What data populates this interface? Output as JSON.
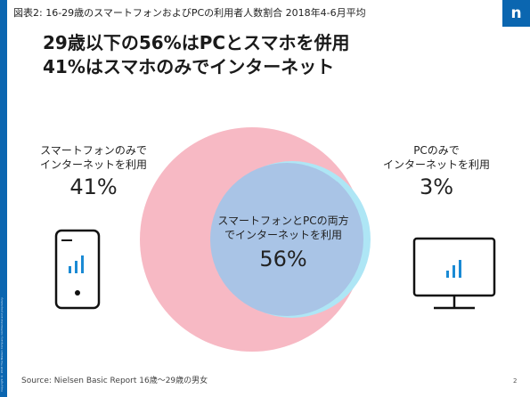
{
  "header": {
    "subtitle": "図表2: 16-29歳のスマートフォンおよびPCの利用者人数割合 2018年4-6月平均",
    "logo_letter": "n"
  },
  "title": {
    "line1": "29歳以下の56%はPCとスマホを併用",
    "line2": "41%はスマホのみでインターネット"
  },
  "segments": {
    "smartphone_only": {
      "line1": "スマートフォンのみで",
      "line2": "インターネットを利用",
      "percent": "41%",
      "value": 41
    },
    "pc_only": {
      "line1": "PCのみで",
      "line2": "インターネットを利用",
      "percent": "3%",
      "value": 3
    },
    "both": {
      "line1": "スマートフォンとPCの両方",
      "line2": "でインターネットを利用",
      "percent": "56%",
      "value": 56
    }
  },
  "colors": {
    "smartphone": "#f7b9c4",
    "pc": "#aee6f5",
    "both": "#a9c4e6",
    "brand": "#0b66b0",
    "icon_bar": "#1a8ad4"
  },
  "icons": {
    "left": "smartphone-icon",
    "right": "desktop-monitor-icon"
  },
  "footer": {
    "source": "Source: Nielsen Basic Report 16歳～29歳の男女",
    "fineprint": "Copyright © 2018 The Nielsen Company. Confidential and proprietary.",
    "page_number": "2"
  }
}
